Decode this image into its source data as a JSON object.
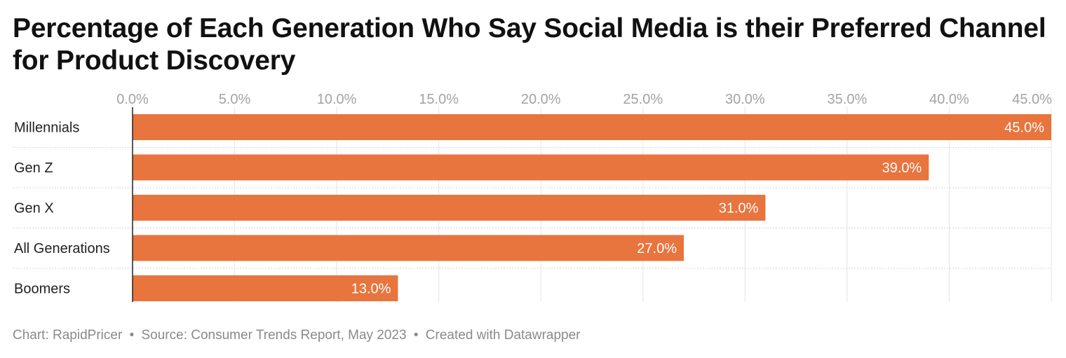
{
  "chart_data": {
    "type": "bar",
    "orientation": "horizontal",
    "title": "Percentage of Each Generation Who Say Social Media is their Preferred Channel for Product Discovery",
    "categories": [
      "Millennials",
      "Gen Z",
      "Gen X",
      "All Generations",
      "Boomers"
    ],
    "values": [
      45.0,
      39.0,
      31.0,
      27.0,
      13.0
    ],
    "value_labels": [
      "45.0%",
      "39.0%",
      "31.0%",
      "27.0%",
      "13.0%"
    ],
    "xlim": [
      0,
      45
    ],
    "x_ticks": [
      0,
      5,
      10,
      15,
      20,
      25,
      30,
      35,
      40,
      45
    ],
    "x_tick_labels": [
      "0.0%",
      "5.0%",
      "10.0%",
      "15.0%",
      "20.0%",
      "25.0%",
      "30.0%",
      "35.0%",
      "40.0%",
      "45.0%"
    ],
    "x_axis_position": "top",
    "grid": true,
    "bar_color": "#e8743e"
  },
  "footer": {
    "chart_credit": "Chart: RapidPricer",
    "source": "Source: Consumer Trends Report, May 2023",
    "created_with": "Created with Datawrapper",
    "separator": "•"
  }
}
